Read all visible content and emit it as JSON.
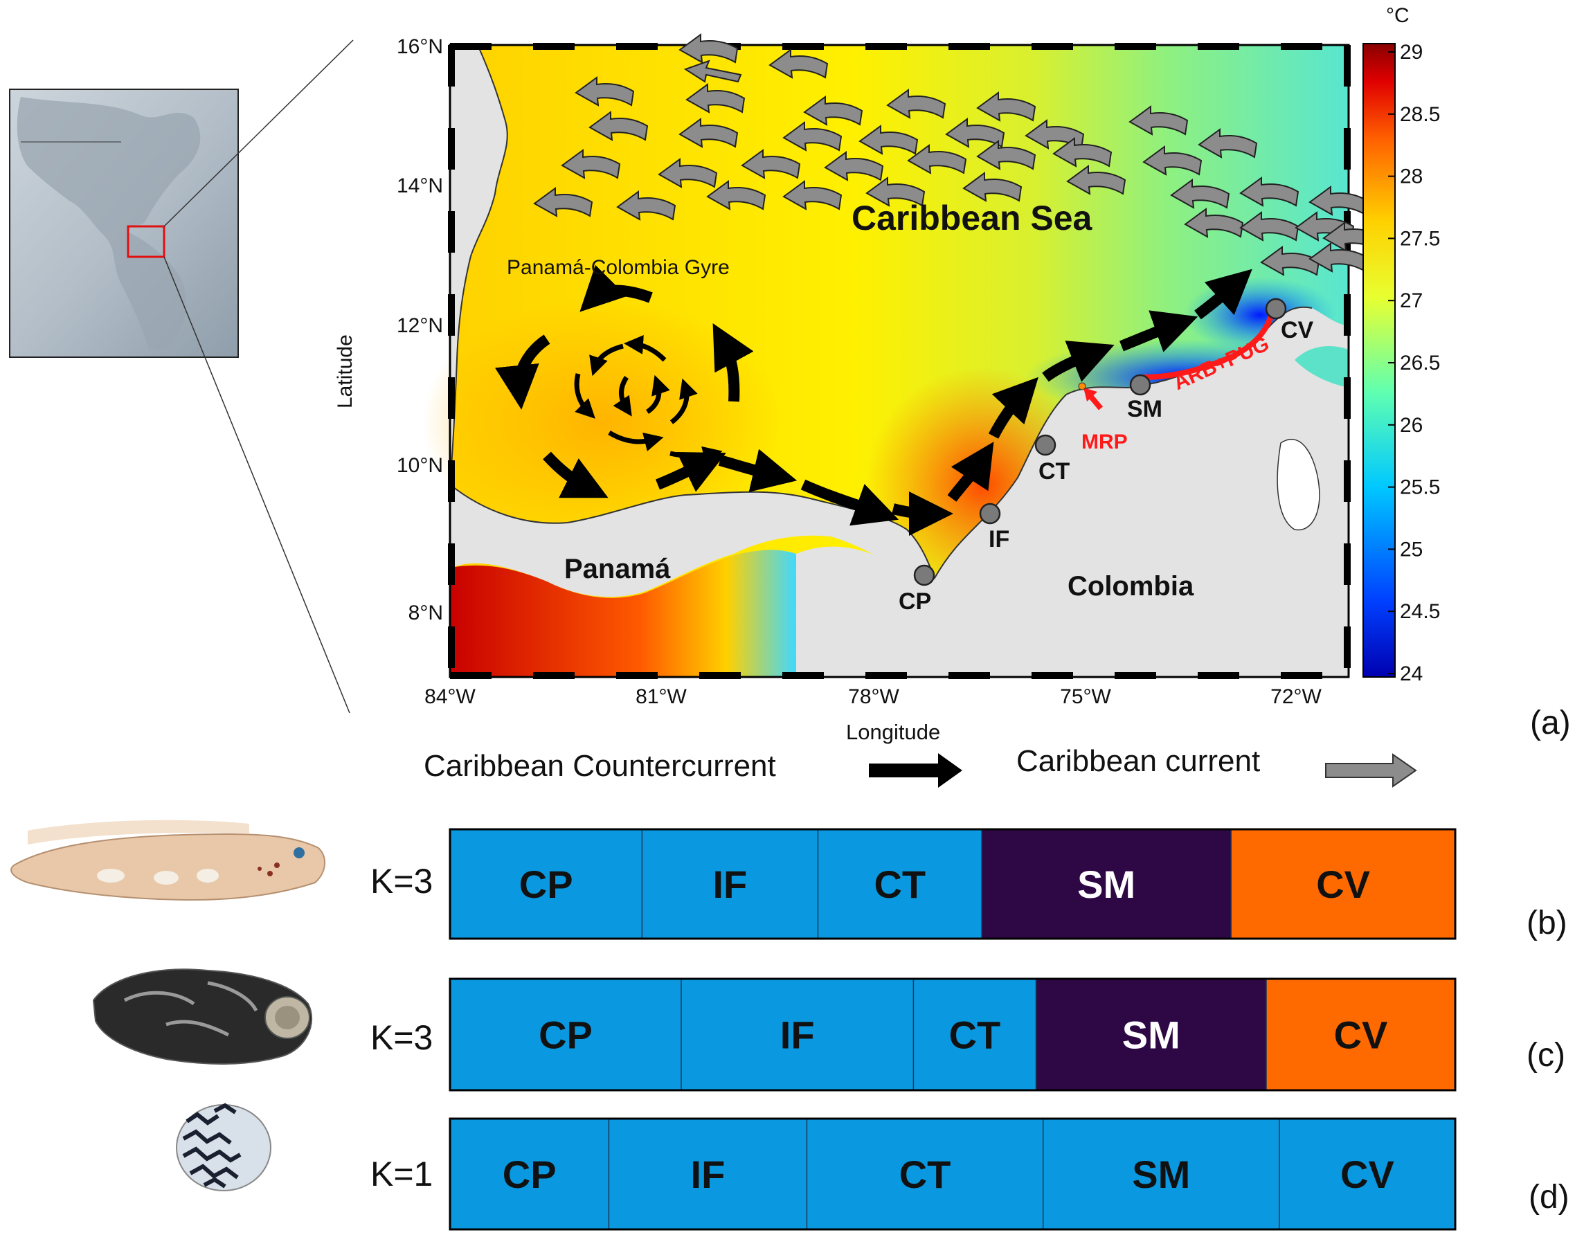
{
  "map": {
    "lat_ticks": [
      "16°N",
      "14°N",
      "12°N",
      "10°N",
      "8°N"
    ],
    "lon_ticks": [
      "84°W",
      "81°W",
      "78°W",
      "75°W",
      "72°W"
    ],
    "ylabel": "Latitude",
    "xlabel": "Longitude",
    "sea_label": "Caribbean Sea",
    "gyre_label": "Panamá-Colombia Gyre",
    "panama_label": "Panamá",
    "colombia_label": "Colombia",
    "sites": [
      "CP",
      "IF",
      "CT",
      "SM",
      "CV"
    ],
    "mrp_label": "MRP",
    "coast_label": "ARB+PUG",
    "colorbar": {
      "unit": "°C",
      "ticks": [
        "29",
        "28.5",
        "28",
        "27.5",
        "27",
        "26.5",
        "26",
        "25.5",
        "25",
        "24.5",
        "24"
      ]
    },
    "colors": {
      "site_marker": "#7a7a7a",
      "highlight": "#ff1a1a",
      "land": "#e3e3e3"
    }
  },
  "legend": {
    "countercurrent": "Caribbean Countercurrent",
    "current": "Caribbean current"
  },
  "panels": {
    "a": "(a)",
    "b": "(b)",
    "c": "(c)",
    "d": "(d)"
  },
  "structure_plots": [
    {
      "k_label": "K=3",
      "organism": "blenny-fish",
      "populations": [
        {
          "name": "CP",
          "cluster": "blue",
          "width": 0.191
        },
        {
          "name": "IF",
          "cluster": "blue",
          "width": 0.175
        },
        {
          "name": "CT",
          "cluster": "blue",
          "width": 0.163
        },
        {
          "name": "SM",
          "cluster": "purple",
          "width": 0.248
        },
        {
          "name": "CV",
          "cluster": "orange",
          "width": 0.223
        }
      ]
    },
    {
      "k_label": "K=3",
      "organism": "dark-snail",
      "populations": [
        {
          "name": "CP",
          "cluster": "blue",
          "width": 0.23
        },
        {
          "name": "IF",
          "cluster": "blue",
          "width": 0.231
        },
        {
          "name": "CT",
          "cluster": "blue",
          "width": 0.122
        },
        {
          "name": "SM",
          "cluster": "purple",
          "width": 0.229
        },
        {
          "name": "CV",
          "cluster": "orange",
          "width": 0.188
        }
      ]
    },
    {
      "k_label": "K=1",
      "organism": "nerite-snail",
      "populations": [
        {
          "name": "CP",
          "cluster": "blue",
          "width": 0.158
        },
        {
          "name": "IF",
          "cluster": "blue",
          "width": 0.197
        },
        {
          "name": "CT",
          "cluster": "blue",
          "width": 0.235
        },
        {
          "name": "SM",
          "cluster": "blue",
          "width": 0.235
        },
        {
          "name": "CV",
          "cluster": "blue",
          "width": 0.175
        }
      ]
    }
  ],
  "cluster_colors": {
    "blue": "#0a99e0",
    "purple": "#2e0745",
    "orange": "#ff6a00"
  }
}
